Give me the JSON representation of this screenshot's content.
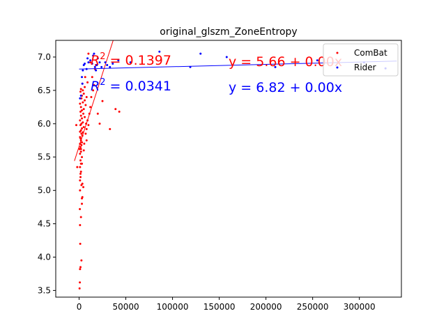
{
  "chart_data": {
    "type": "scatter",
    "title": "original_glszm_ZoneEntropy",
    "xlabel": "",
    "ylabel": "",
    "xlim": [
      -25000,
      345000
    ],
    "ylim": [
      3.4,
      7.25
    ],
    "x_ticks": [
      0,
      50000,
      100000,
      150000,
      200000,
      250000,
      300000
    ],
    "x_tick_labels": [
      "0",
      "50000",
      "100000",
      "150000",
      "200000",
      "250000",
      "300000"
    ],
    "y_ticks": [
      3.5,
      4.0,
      4.5,
      5.0,
      5.5,
      6.0,
      6.5,
      7.0
    ],
    "y_tick_labels": [
      "3.5",
      "4.0",
      "4.5",
      "5.0",
      "5.5",
      "6.0",
      "6.5",
      "7.0"
    ],
    "grid": false,
    "legend_position": "top-right",
    "series": [
      {
        "name": "ComBat",
        "color": "#ff0000",
        "fit": {
          "intercept": 5.66,
          "slope": 4.36e-05,
          "x_range": [
            -5000,
            45000
          ]
        },
        "r2_label": "R^2 = 0.1397",
        "eq_label": "y = 5.66 + 0.00x",
        "points": [
          [
            -2000,
            5.35
          ],
          [
            -3000,
            5.98
          ],
          [
            500,
            3.53
          ],
          [
            800,
            3.62
          ],
          [
            1000,
            3.82
          ],
          [
            1500,
            3.85
          ],
          [
            1200,
            4.2
          ],
          [
            1000,
            4.48
          ],
          [
            800,
            4.72
          ],
          [
            2000,
            4.6
          ],
          [
            3000,
            4.8
          ],
          [
            3000,
            4.88
          ],
          [
            1000,
            5.0
          ],
          [
            2500,
            5.08
          ],
          [
            3500,
            5.1
          ],
          [
            1000,
            5.15
          ],
          [
            1500,
            5.2
          ],
          [
            2000,
            5.28
          ],
          [
            1000,
            5.35
          ],
          [
            2000,
            5.4
          ],
          [
            1500,
            5.45
          ],
          [
            3000,
            5.5
          ],
          [
            1000,
            5.55
          ],
          [
            2000,
            5.58
          ],
          [
            500,
            5.62
          ],
          [
            1500,
            5.65
          ],
          [
            2500,
            5.68
          ],
          [
            1000,
            5.7
          ],
          [
            3000,
            5.72
          ],
          [
            2000,
            5.75
          ],
          [
            1500,
            5.78
          ],
          [
            1000,
            5.8
          ],
          [
            3500,
            5.82
          ],
          [
            2500,
            5.85
          ],
          [
            4000,
            5.87
          ],
          [
            1000,
            5.88
          ],
          [
            2000,
            5.9
          ],
          [
            3000,
            5.93
          ],
          [
            5000,
            5.95
          ],
          [
            1500,
            5.98
          ],
          [
            2500,
            6.0
          ],
          [
            4000,
            6.02
          ],
          [
            1000,
            6.05
          ],
          [
            3000,
            6.08
          ],
          [
            6000,
            6.1
          ],
          [
            2000,
            6.12
          ],
          [
            4500,
            6.15
          ],
          [
            1500,
            6.18
          ],
          [
            3000,
            6.2
          ],
          [
            5000,
            6.22
          ],
          [
            2000,
            6.25
          ],
          [
            7000,
            6.28
          ],
          [
            1000,
            6.3
          ],
          [
            4000,
            6.32
          ],
          [
            6000,
            6.35
          ],
          [
            2500,
            6.38
          ],
          [
            8000,
            6.4
          ],
          [
            3000,
            6.42
          ],
          [
            5000,
            6.45
          ],
          [
            1500,
            6.48
          ],
          [
            4000,
            6.5
          ],
          [
            2000,
            6.52
          ],
          [
            6000,
            6.55
          ],
          [
            3500,
            6.6
          ],
          [
            9000,
            6.62
          ],
          [
            2000,
            5.62
          ],
          [
            5500,
            5.7
          ],
          [
            7000,
            5.85
          ],
          [
            8000,
            5.92
          ],
          [
            10000,
            5.98
          ],
          [
            9000,
            6.05
          ],
          [
            11000,
            6.15
          ],
          [
            12000,
            6.25
          ],
          [
            13000,
            6.4
          ],
          [
            15000,
            6.5
          ],
          [
            16000,
            6.58
          ],
          [
            14000,
            6.7
          ],
          [
            17000,
            6.82
          ],
          [
            18000,
            6.88
          ],
          [
            12000,
            6.92
          ],
          [
            10000,
            7.05
          ],
          [
            20000,
            6.15
          ],
          [
            22000,
            6.0
          ],
          [
            25000,
            6.34
          ],
          [
            33000,
            5.92
          ],
          [
            39000,
            6.22
          ],
          [
            43000,
            6.18
          ],
          [
            8000,
            5.75
          ],
          [
            6500,
            6.7
          ],
          [
            4500,
            5.05
          ],
          [
            3500,
            4.9
          ],
          [
            2500,
            3.95
          ],
          [
            5000,
            5.6
          ],
          [
            7500,
            6.0
          ],
          [
            3000,
            5.4
          ],
          [
            1500,
            5.25
          ]
        ]
      },
      {
        "name": "Rider",
        "color": "#0000ff",
        "fit": {
          "intercept": 6.82,
          "slope": 3.5e-07,
          "x_range": [
            0,
            340000
          ]
        },
        "r2_label": "R^2 = 0.0341",
        "eq_label": "y = 6.82 + 0.00x",
        "points": [
          [
            1000,
            6.38
          ],
          [
            2000,
            6.42
          ],
          [
            3000,
            6.7
          ],
          [
            4000,
            6.8
          ],
          [
            5000,
            6.88
          ],
          [
            6000,
            6.9
          ],
          [
            8000,
            6.82
          ],
          [
            10000,
            6.92
          ],
          [
            12000,
            6.95
          ],
          [
            14000,
            6.9
          ],
          [
            15000,
            7.02
          ],
          [
            17000,
            6.85
          ],
          [
            18000,
            6.8
          ],
          [
            19000,
            6.88
          ],
          [
            20000,
            6.98
          ],
          [
            22000,
            6.92
          ],
          [
            24000,
            6.85
          ],
          [
            28000,
            6.92
          ],
          [
            30000,
            6.88
          ],
          [
            33000,
            6.85
          ],
          [
            36000,
            6.9
          ],
          [
            42000,
            6.95
          ],
          [
            55000,
            6.92
          ],
          [
            86000,
            7.08
          ],
          [
            119000,
            6.85
          ],
          [
            130000,
            7.05
          ],
          [
            158000,
            7.0
          ],
          [
            210000,
            6.85
          ],
          [
            255000,
            6.95
          ],
          [
            305000,
            6.92
          ],
          [
            328000,
            6.83
          ],
          [
            16000,
            7.05
          ],
          [
            9000,
            6.98
          ],
          [
            3500,
            6.6
          ]
        ]
      }
    ]
  }
}
